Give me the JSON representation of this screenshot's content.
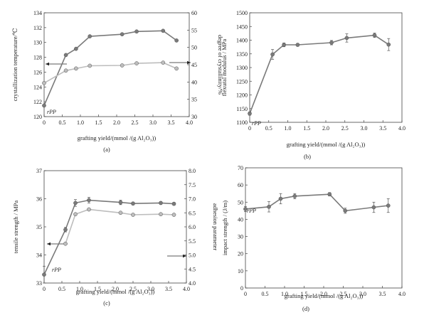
{
  "chart_data": [
    {
      "id": "a",
      "type": "line",
      "caption": "(a)",
      "xlabel": "grafting yield/(mmol /(g Al₂O₃))",
      "ylabel": "crystallization temperature/℃",
      "y2label": "degree of crystallinity/%",
      "xlim": [
        0,
        4
      ],
      "ylim": [
        119,
        134
      ],
      "y2lim": [
        30,
        60
      ],
      "xticks": [
        "0",
        "0.5",
        "1.0",
        "1.5",
        "2.0",
        "2.5",
        "3.0",
        "3.5",
        "4.0"
      ],
      "yticks": [
        "120",
        "122",
        "124",
        "126",
        "128",
        "130",
        "132",
        "134"
      ],
      "y2ticks": [
        "30",
        "35",
        "40",
        "45",
        "50",
        "55",
        "60"
      ],
      "annotation": "rPP",
      "series": [
        {
          "axis": "left",
          "color": "#7a7a7a",
          "x": [
            0,
            0.6,
            0.88,
            1.26,
            2.15,
            2.55,
            3.28,
            3.65
          ],
          "y": [
            120.6,
            127.9,
            128.8,
            130.6,
            130.9,
            131.3,
            131.4,
            130.0
          ]
        },
        {
          "axis": "right",
          "color": "#bdbdbd",
          "x": [
            0,
            0.6,
            0.88,
            1.26,
            2.15,
            2.55,
            3.28,
            3.65
          ],
          "y": [
            39.7,
            43.3,
            43.9,
            44.7,
            44.8,
            45.4,
            45.6,
            43.9
          ]
        }
      ]
    },
    {
      "id": "b",
      "type": "line",
      "caption": "(b)",
      "xlabel": "grafting yield/(mmol /(g Al₂O₃))",
      "ylabel": "flexural modulus / MPa",
      "xlim": [
        0,
        4
      ],
      "ylim": [
        1100,
        1500
      ],
      "xticks": [
        "0",
        "0.5",
        "1.0",
        "1.5",
        "2.0",
        "2.5",
        "3.0",
        "3.5",
        "4.0"
      ],
      "yticks": [
        "1100",
        "1150",
        "1200",
        "1250",
        "1300",
        "1350",
        "1400",
        "1450",
        "1500"
      ],
      "annotation": "rPP",
      "series": [
        {
          "axis": "left",
          "color": "#7a7a7a",
          "x": [
            0,
            0.6,
            0.9,
            1.26,
            2.15,
            2.55,
            3.28,
            3.65
          ],
          "y": [
            1132,
            1348,
            1383,
            1383,
            1391,
            1408,
            1418,
            1384
          ],
          "err": [
            6,
            18,
            7,
            5,
            8,
            15,
            8,
            22
          ]
        }
      ]
    },
    {
      "id": "c",
      "type": "line",
      "caption": "(c)",
      "xlabel": "grafting yield/(mmol /(g Al₂O₃))",
      "ylabel": "tensile strength / MPa",
      "y2label": "adhesion parameter",
      "xlim": [
        0,
        4
      ],
      "ylim": [
        33,
        37
      ],
      "y2lim": [
        4,
        8
      ],
      "xticks": [
        "0",
        "0.5",
        "1.0",
        "1.5",
        "2.0",
        "2.5",
        "3.0",
        "3.5",
        "4.0"
      ],
      "yticks": [
        "33",
        "34",
        "35",
        "36",
        "37"
      ],
      "y2ticks": [
        "4.0",
        "4.5",
        "5.0",
        "5.5",
        "6.0",
        "6.5",
        "7.0",
        "7.5",
        "8.0"
      ],
      "annotation": "rPP",
      "series": [
        {
          "axis": "left",
          "color": "#7a7a7a",
          "x": [
            0,
            0.6,
            0.88,
            1.26,
            2.15,
            2.5,
            3.28,
            3.65
          ],
          "y": [
            33.3,
            34.9,
            35.85,
            35.95,
            35.87,
            35.83,
            35.85,
            35.82
          ],
          "err": [
            0.3,
            0.08,
            0.12,
            0.1,
            0.08,
            0.05,
            0.05,
            0.05
          ]
        },
        {
          "axis": "right",
          "color": "#bdbdbd",
          "x": [
            0.6,
            0.88,
            1.26,
            2.15,
            2.5,
            3.28,
            3.65
          ],
          "y": [
            5.4,
            6.45,
            6.62,
            6.5,
            6.43,
            6.45,
            6.43
          ]
        }
      ]
    },
    {
      "id": "d",
      "type": "line",
      "caption": "(d)",
      "xlabel": "grafting yield/(mmol /(g Al₂O₃))",
      "ylabel": "impact strength / (J/m)",
      "xlim": [
        0,
        4
      ],
      "ylim": [
        0,
        70
      ],
      "xticks": [
        "0",
        "0.5",
        "1.0",
        "1.5",
        "2.0",
        "2.5",
        "3.0",
        "3.5",
        "4.0"
      ],
      "yticks": [
        "0",
        "10",
        "20",
        "30",
        "40",
        "50",
        "60",
        "70"
      ],
      "annotation": "rPP",
      "series": [
        {
          "axis": "left",
          "color": "#7a7a7a",
          "x": [
            0,
            0.6,
            0.9,
            1.26,
            2.15,
            2.55,
            3.28,
            3.65
          ],
          "y": [
            46,
            47.3,
            52,
            53.5,
            54.6,
            45,
            47,
            48
          ],
          "err": [
            1.5,
            3,
            3,
            1.5,
            1,
            1.5,
            3,
            4
          ]
        }
      ]
    }
  ]
}
